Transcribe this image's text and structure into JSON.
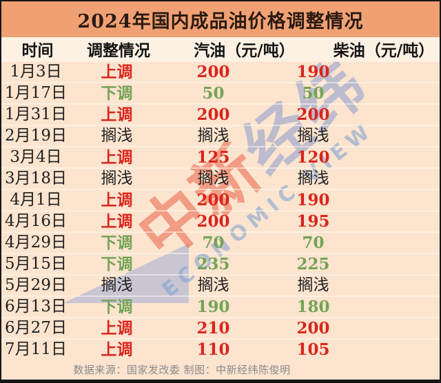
{
  "chart_data": {
    "type": "table",
    "title": "2024年国内成品油价格调整情况",
    "columns": [
      "时间",
      "调整情况",
      "汽油（元/吨）",
      "柴油（元/吨）"
    ],
    "rows": [
      {
        "date": "1月3日",
        "action": "上调",
        "gasoline": "200",
        "diesel": "190",
        "direction": "up"
      },
      {
        "date": "1月17日",
        "action": "下调",
        "gasoline": "50",
        "diesel": "50",
        "direction": "down"
      },
      {
        "date": "1月31日",
        "action": "上调",
        "gasoline": "200",
        "diesel": "200",
        "direction": "up"
      },
      {
        "date": "2月19日",
        "action": "搁浅",
        "gasoline": "搁浅",
        "diesel": "搁浅",
        "direction": "hold"
      },
      {
        "date": "3月4日",
        "action": "上调",
        "gasoline": "125",
        "diesel": "120",
        "direction": "up"
      },
      {
        "date": "3月18日",
        "action": "搁浅",
        "gasoline": "搁浅",
        "diesel": "搁浅",
        "direction": "hold"
      },
      {
        "date": "4月1日",
        "action": "上调",
        "gasoline": "200",
        "diesel": "190",
        "direction": "up"
      },
      {
        "date": "4月16日",
        "action": "上调",
        "gasoline": "200",
        "diesel": "195",
        "direction": "up"
      },
      {
        "date": "4月29日",
        "action": "下调",
        "gasoline": "70",
        "diesel": "70",
        "direction": "down"
      },
      {
        "date": "5月15日",
        "action": "下调",
        "gasoline": "235",
        "diesel": "225",
        "direction": "down"
      },
      {
        "date": "5月29日",
        "action": "搁浅",
        "gasoline": "搁浅",
        "diesel": "搁浅",
        "direction": "hold"
      },
      {
        "date": "6月13日",
        "action": "下调",
        "gasoline": "190",
        "diesel": "180",
        "direction": "down"
      },
      {
        "date": "6月27日",
        "action": "上调",
        "gasoline": "210",
        "diesel": "200",
        "direction": "up"
      },
      {
        "date": "7月11日",
        "action": "上调",
        "gasoline": "110",
        "diesel": "105",
        "direction": "up"
      }
    ],
    "legend": {
      "up_label": "上调",
      "down_label": "下调",
      "hold_label": "搁浅"
    }
  },
  "footer": {
    "source_note": "数据来源：国家发改委 制图：中新经纬陈俊明"
  },
  "watermark": {
    "cn_red": "中新",
    "cn_blue": "经纬",
    "en": "ECONOMIC VIEW"
  },
  "colors": {
    "title_band": "#f0a173",
    "title_text": "#2b1a12",
    "header_bg": "#fdf1e3",
    "body_bg": "#fce4cf",
    "border_color": "#161616",
    "accent_red": "#d9251d",
    "accent_green": "#74a356",
    "footer_gray": "#8a8a8a"
  }
}
